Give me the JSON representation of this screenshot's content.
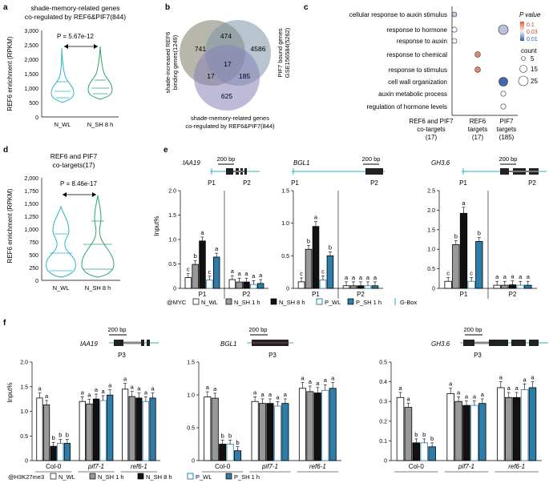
{
  "panel_a": {
    "letter": "a",
    "title1": "shade-memory-related genes",
    "title2": "co-regulated by REF6&PIF7(844)",
    "pval": "P = 5.67e-12",
    "ylabel": "REF6 enrichment (RPKM)",
    "yticks": [
      "3,000",
      "2,500",
      "2,000",
      "1,500",
      "1,000",
      "500",
      "0"
    ],
    "xlabels": [
      "N_WL",
      "N_SH 8 h"
    ]
  },
  "panel_b": {
    "letter": "b",
    "left_label1": "shade-increased REF6",
    "left_label2": "binding genes(1249)",
    "right_label1": "PIF7 bound genes",
    "right_label2": "GSE156584(5262)",
    "bottom_label1": "shade-memory-related genes",
    "bottom_label2": "co-regulated by REF6&PIF7(844)",
    "counts": [
      "741",
      "474",
      "4586",
      "17",
      "17",
      "185",
      "625"
    ]
  },
  "panel_c": {
    "letter": "c",
    "terms": [
      "cellular response to auxin stimulus",
      "response to hormone",
      "response to auxin",
      "response to chemical",
      "response to stimulus",
      "cell wall organization",
      "auxin metabolic process",
      "regulation of hormone levels"
    ],
    "columns": [
      {
        "l1": "REF6 and PIF7",
        "l2": "co-targets",
        "l3": "(17)"
      },
      {
        "l1": "REF6",
        "l2": "targets",
        "l3": "(17)"
      },
      {
        "l1": "PIF7",
        "l2": "targets",
        "l3": "(185)"
      }
    ],
    "legend_title": "P value",
    "legend_vals": [
      "0.1",
      "0.03",
      "0.01"
    ],
    "count_title": "count",
    "count_vals": [
      "5",
      "15",
      "25"
    ]
  },
  "panel_d": {
    "letter": "d",
    "title1": "REF6 and PIF7",
    "title2": "co-targets(17)",
    "pval": "P = 8.46e-17",
    "ylabel": "REF6 enrichment (RPKM)",
    "yticks": [
      "2,000",
      "1,750",
      "1,500",
      "1,250",
      "1,000",
      "750",
      "500",
      "250",
      "0"
    ],
    "xlabels": [
      "N_WL",
      "N_SH 8 h"
    ]
  },
  "panel_e": {
    "letter": "e",
    "genes": [
      "IAA19",
      "BGL1",
      "GH3.6"
    ],
    "scale": "200 bp",
    "ylabel": "Input%",
    "yticks": [
      "0",
      "0.5",
      "1.0",
      "1.5",
      "2.0"
    ],
    "primers": [
      "P1",
      "P2"
    ],
    "legend_prefix": "@MYC",
    "legend_items": [
      "N_WL",
      "N_SH 1 h",
      "N_SH 8 h",
      "P_WL",
      "P_SH 1 h",
      "G-Box"
    ]
  },
  "panel_f": {
    "letter": "f",
    "genes": [
      "IAA19",
      "BGL1",
      "GH3.6"
    ],
    "scale": "200 bp",
    "primer": "P3",
    "ylabel": "Input%",
    "groups": [
      "Col-0",
      "pif7-1",
      "ref6-1"
    ],
    "legend_prefix": "@H3K27me3",
    "legend_items": [
      "N_WL",
      "N_SH 1 h",
      "N_SH 8 h",
      "P_WL",
      "P_SH 1 h"
    ]
  },
  "chart_data": [
    {
      "type": "bar",
      "title": "IAA19 (e)",
      "ylabel": "Input%",
      "ylim": [
        0,
        2.0
      ],
      "categories": [
        "P1",
        "P2"
      ],
      "series": [
        {
          "name": "N_WL",
          "values": [
            0.22,
            0.18
          ]
        },
        {
          "name": "N_SH 1 h",
          "values": [
            0.49,
            0.13
          ]
        },
        {
          "name": "N_SH 8 h",
          "values": [
            0.97,
            0.13
          ]
        },
        {
          "name": "P_WL",
          "values": [
            0.17,
            0.08
          ]
        },
        {
          "name": "P_SH 1 h",
          "values": [
            0.64,
            0.1
          ]
        }
      ],
      "letters": [
        [
          "c",
          "b",
          "a",
          "c",
          "a"
        ],
        [
          "a",
          "a",
          "a",
          "a",
          "a"
        ]
      ]
    },
    {
      "type": "bar",
      "title": "BGL1 (e)",
      "ylabel": "Input%",
      "ylim": [
        0,
        1.5
      ],
      "categories": [
        "P1",
        "P2"
      ],
      "series": [
        {
          "name": "N_WL",
          "values": [
            0.1,
            0.04
          ]
        },
        {
          "name": "N_SH 1 h",
          "values": [
            0.6,
            0.04
          ]
        },
        {
          "name": "N_SH 8 h",
          "values": [
            0.95,
            0.04
          ]
        },
        {
          "name": "P_WL",
          "values": [
            0.13,
            0.04
          ]
        },
        {
          "name": "P_SH 1 h",
          "values": [
            0.5,
            0.04
          ]
        }
      ],
      "letters": [
        [
          "c",
          "b",
          "a",
          "c",
          "b"
        ],
        [
          "a",
          "a",
          "a",
          "a",
          "a"
        ]
      ]
    },
    {
      "type": "bar",
      "title": "GH3.6 (e)",
      "ylabel": "Input%",
      "ylim": [
        0,
        2.5
      ],
      "categories": [
        "P1",
        "P2"
      ],
      "series": [
        {
          "name": "N_WL",
          "values": [
            0.18,
            0.08
          ]
        },
        {
          "name": "N_SH 1 h",
          "values": [
            1.12,
            0.08
          ]
        },
        {
          "name": "N_SH 8 h",
          "values": [
            1.92,
            0.09
          ]
        },
        {
          "name": "P_WL",
          "values": [
            0.18,
            0.08
          ]
        },
        {
          "name": "P_SH 1 h",
          "values": [
            1.2,
            0.08
          ]
        }
      ],
      "letters": [
        [
          "c",
          "b",
          "a",
          "c",
          "b"
        ],
        [
          "a",
          "a",
          "a",
          "a",
          "a"
        ]
      ]
    },
    {
      "type": "bar",
      "title": "IAA19 (f)",
      "ylabel": "Input%",
      "ylim": [
        0,
        2.0
      ],
      "categories": [
        "Col-0",
        "pif7-1",
        "ref6-1"
      ],
      "series": [
        {
          "name": "N_WL",
          "values": [
            1.27,
            1.2,
            1.45
          ]
        },
        {
          "name": "N_SH 1 h",
          "values": [
            1.13,
            1.15,
            1.3
          ]
        },
        {
          "name": "N_SH 8 h",
          "values": [
            0.29,
            1.25,
            1.27
          ]
        },
        {
          "name": "P_WL",
          "values": [
            0.35,
            1.22,
            1.2
          ]
        },
        {
          "name": "P_SH 1 h",
          "values": [
            0.35,
            1.33,
            1.27
          ]
        }
      ],
      "letters": [
        [
          "a",
          "a",
          "b",
          "b",
          "b"
        ],
        [
          "a",
          "a",
          "a",
          "a",
          "a"
        ],
        [
          "a",
          "a",
          "a",
          "a",
          "a"
        ]
      ]
    },
    {
      "type": "bar",
      "title": "BGL1 (f)",
      "ylabel": "Input%",
      "ylim": [
        0,
        1.5
      ],
      "categories": [
        "Col-0",
        "pif7-1",
        "ref6-1"
      ],
      "series": [
        {
          "name": "N_WL",
          "values": [
            0.97,
            0.9,
            1.1
          ]
        },
        {
          "name": "N_SH 1 h",
          "values": [
            0.95,
            0.87,
            1.05
          ]
        },
        {
          "name": "N_SH 8 h",
          "values": [
            0.25,
            0.87,
            1.03
          ]
        },
        {
          "name": "P_WL",
          "values": [
            0.25,
            0.83,
            1.07
          ]
        },
        {
          "name": "P_SH 1 h",
          "values": [
            0.15,
            0.87,
            1.1
          ]
        }
      ],
      "letters": [
        [
          "a",
          "a",
          "b",
          "b",
          "b"
        ],
        [
          "a",
          "a",
          "a",
          "a",
          "a"
        ],
        [
          "a",
          "a",
          "a",
          "a",
          "a"
        ]
      ]
    },
    {
      "type": "bar",
      "title": "GH3.6 (f)",
      "ylabel": "Input%",
      "ylim": [
        0,
        0.5
      ],
      "categories": [
        "Col-0",
        "pif7-1",
        "ref6-1"
      ],
      "series": [
        {
          "name": "N_WL",
          "values": [
            0.32,
            0.34,
            0.37
          ]
        },
        {
          "name": "N_SH 1 h",
          "values": [
            0.27,
            0.3,
            0.32
          ]
        },
        {
          "name": "N_SH 8 h",
          "values": [
            0.09,
            0.28,
            0.32
          ]
        },
        {
          "name": "P_WL",
          "values": [
            0.09,
            0.28,
            0.36
          ]
        },
        {
          "name": "P_SH 1 h",
          "values": [
            0.07,
            0.29,
            0.37
          ]
        }
      ],
      "letters": [
        [
          "a",
          "a",
          "b",
          "b",
          "b"
        ],
        [
          "a",
          "a",
          "a",
          "a",
          "a"
        ],
        [
          "a",
          "a",
          "a",
          "a",
          "a"
        ]
      ]
    }
  ],
  "colors": {
    "n_wl": "#ffffff",
    "n_sh1": "#999999",
    "n_sh8": "#111111",
    "p_wl": "#ffffff",
    "p_sh1": "#2e7ca8",
    "violin_wl": "#2bb3c0",
    "violin_sh": "#2fa36b"
  }
}
